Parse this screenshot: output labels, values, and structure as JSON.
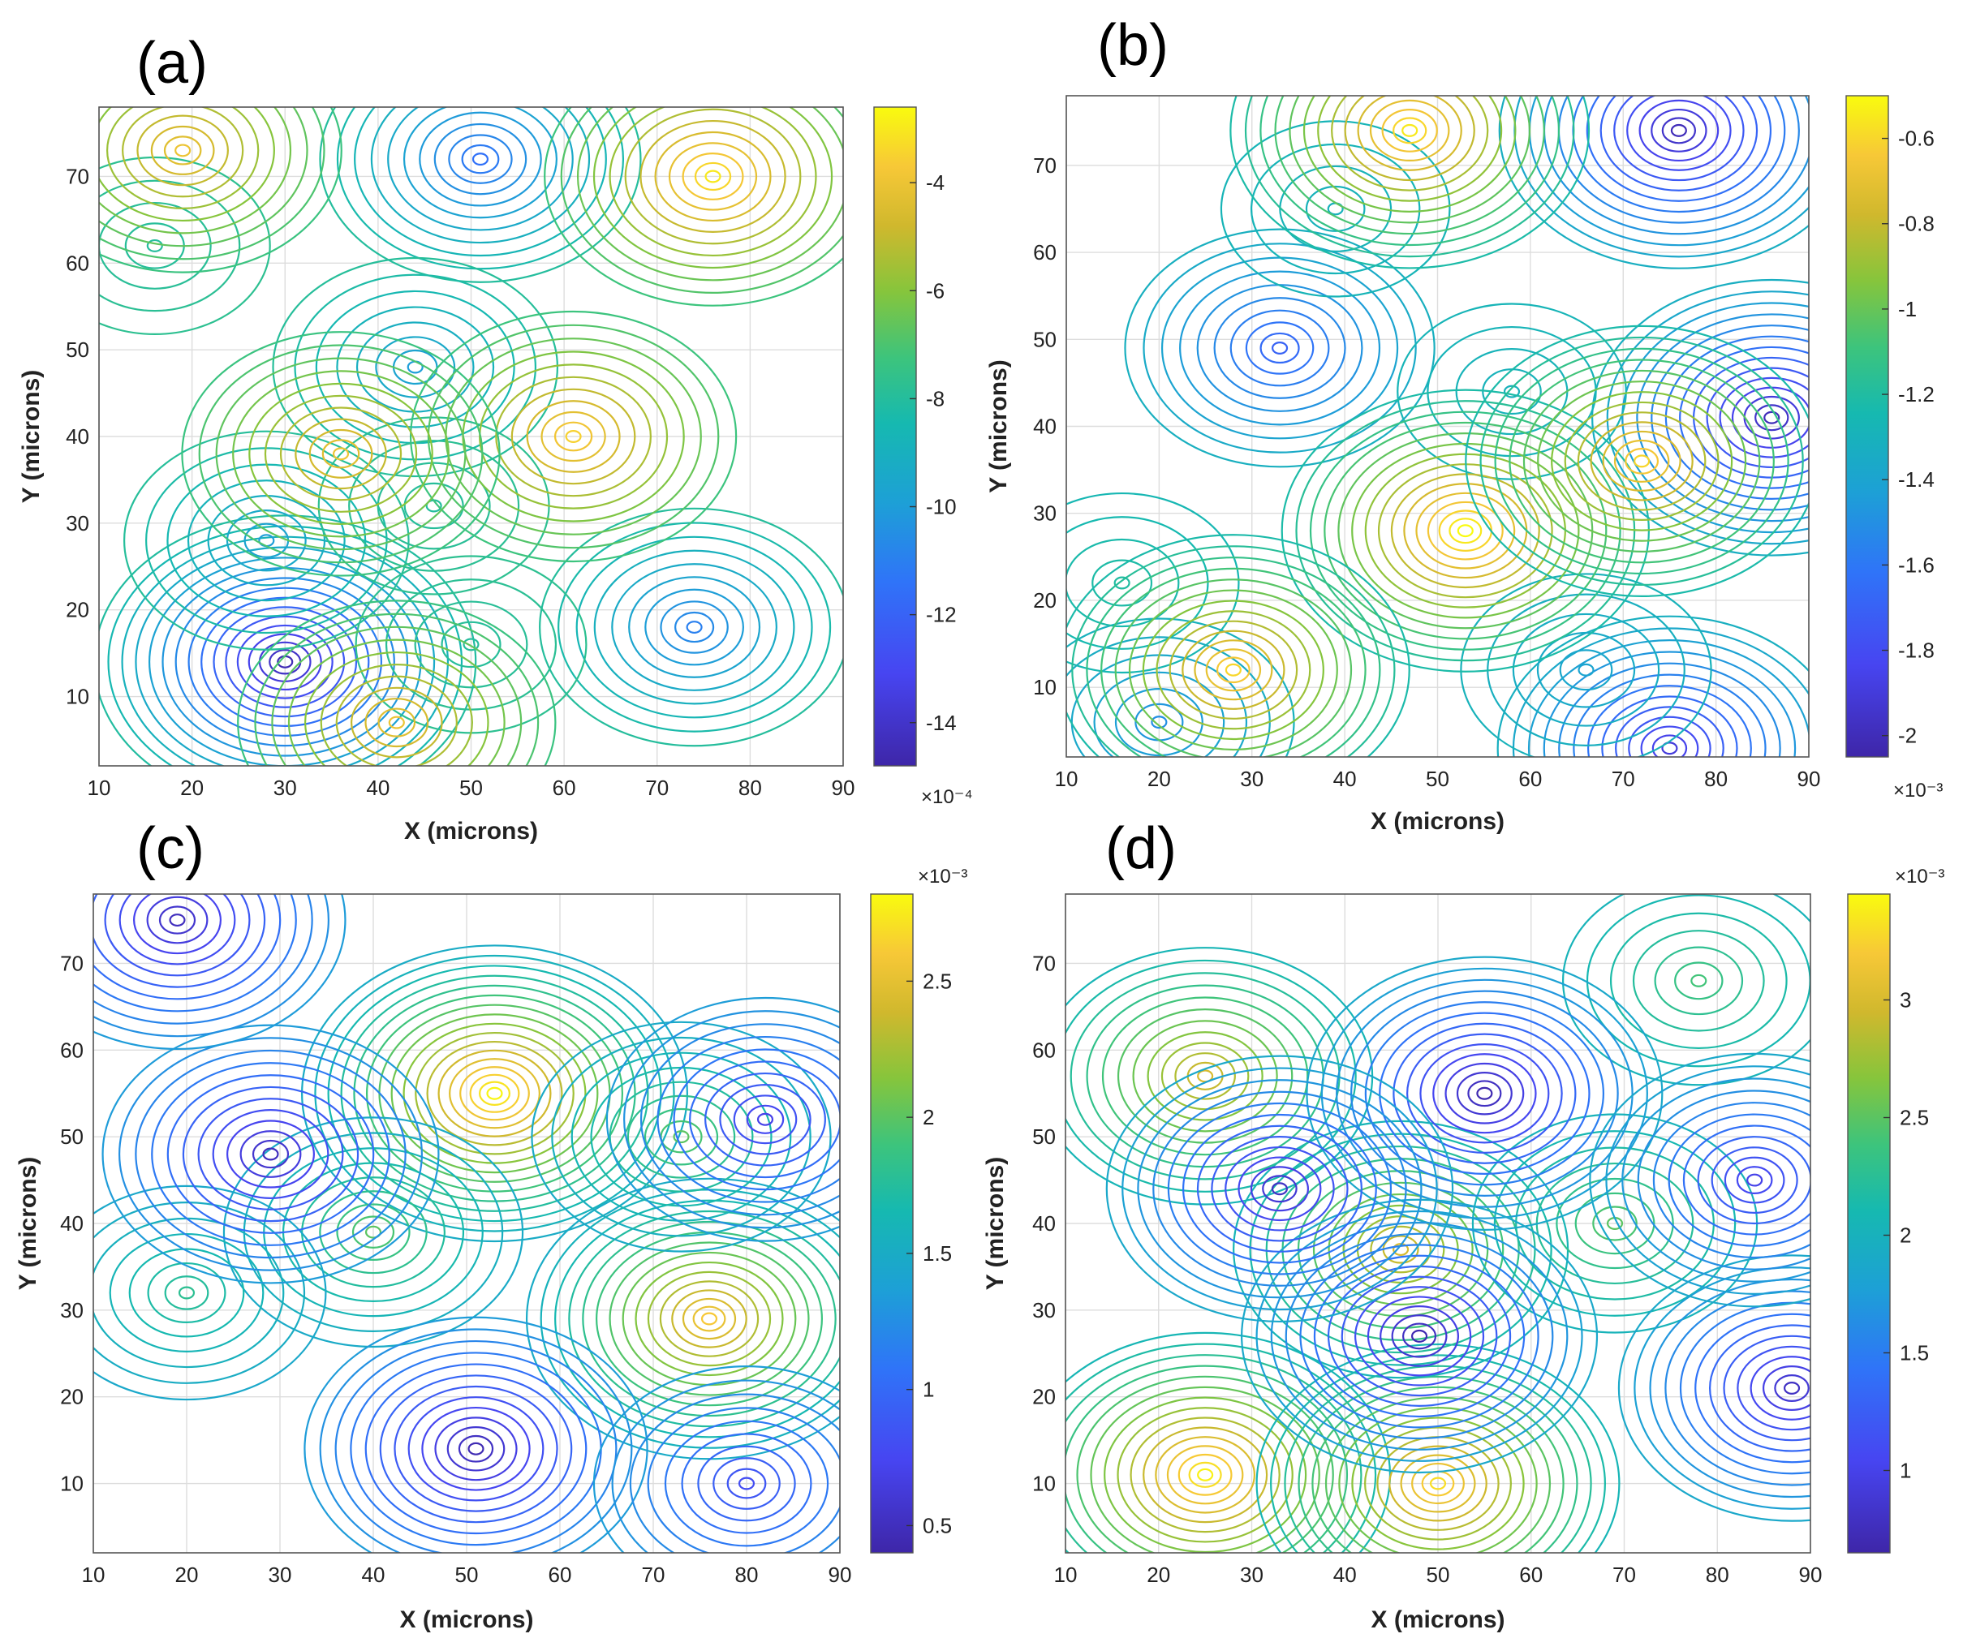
{
  "figure": {
    "panels": [
      "(a)",
      "(b)",
      "(c)",
      "(d)"
    ]
  },
  "chart_data": [
    {
      "type": "contour",
      "panel": "(a)",
      "title": "(a)",
      "xlabel": "X (microns)",
      "ylabel": "Y (microns)",
      "xlim": [
        10,
        90
      ],
      "ylim": [
        2,
        78
      ],
      "xticks": [
        10,
        20,
        30,
        40,
        50,
        60,
        70,
        80,
        90
      ],
      "yticks": [
        10,
        20,
        30,
        40,
        50,
        60,
        70
      ],
      "grid": true,
      "colorbar": {
        "range": [
          -14.8,
          -2.6
        ],
        "ticks": [
          -14,
          -12,
          -10,
          -8,
          -6,
          -4
        ],
        "tick_labels": [
          "-14",
          "-12",
          "-10",
          "-8",
          "-6",
          "-4"
        ],
        "multiplier": "×10⁻⁴",
        "multiplier_position": "bottom",
        "colormap": "parula"
      },
      "features": [
        {
          "x": 30,
          "y": 14,
          "value": -14.5,
          "kind": "minimum"
        },
        {
          "x": 51,
          "y": 72,
          "value": -11.5,
          "kind": "minimum"
        },
        {
          "x": 74,
          "y": 18,
          "value": -11.0,
          "kind": "minimum"
        },
        {
          "x": 44,
          "y": 48,
          "value": -10.0,
          "kind": "minimum"
        },
        {
          "x": 28,
          "y": 28,
          "value": -10.0,
          "kind": "minimum"
        },
        {
          "x": 50,
          "y": 16,
          "value": -8.0,
          "kind": "minimum"
        },
        {
          "x": 46,
          "y": 32,
          "value": -8.0,
          "kind": "minimum"
        },
        {
          "x": 16,
          "y": 62,
          "value": -8.0,
          "kind": "minimum"
        },
        {
          "x": 42,
          "y": 7,
          "value": -4.0,
          "kind": "maximum"
        },
        {
          "x": 76,
          "y": 70,
          "value": -3.0,
          "kind": "maximum"
        },
        {
          "x": 61,
          "y": 40,
          "value": -3.5,
          "kind": "maximum"
        },
        {
          "x": 36,
          "y": 38,
          "value": -4.0,
          "kind": "maximum"
        },
        {
          "x": 19,
          "y": 73,
          "value": -4.0,
          "kind": "maximum"
        }
      ]
    },
    {
      "type": "contour",
      "panel": "(b)",
      "title": "(b)",
      "xlabel": "X (microns)",
      "ylabel": "Y (microns)",
      "xlim": [
        10,
        90
      ],
      "ylim": [
        2,
        78
      ],
      "xticks": [
        10,
        20,
        30,
        40,
        50,
        60,
        70,
        80,
        90
      ],
      "yticks": [
        10,
        20,
        30,
        40,
        50,
        60,
        70
      ],
      "grid": true,
      "colorbar": {
        "range": [
          -2.05,
          -0.5
        ],
        "ticks": [
          -2,
          -1.8,
          -1.6,
          -1.4,
          -1.2,
          -1,
          -0.8,
          -0.6
        ],
        "tick_labels": [
          "-2",
          "-1.8",
          "-1.6",
          "-1.4",
          "-1.2",
          "-1",
          "-0.8",
          "-0.6"
        ],
        "multiplier": "×10⁻³",
        "multiplier_position": "bottom",
        "colormap": "parula"
      },
      "features": [
        {
          "x": 76,
          "y": 74,
          "value": -2.0,
          "kind": "minimum"
        },
        {
          "x": 86,
          "y": 41,
          "value": -2.0,
          "kind": "minimum"
        },
        {
          "x": 33,
          "y": 49,
          "value": -1.7,
          "kind": "minimum"
        },
        {
          "x": 75,
          "y": 3,
          "value": -1.9,
          "kind": "minimum"
        },
        {
          "x": 58,
          "y": 44,
          "value": -1.3,
          "kind": "minimum"
        },
        {
          "x": 20,
          "y": 6,
          "value": -1.5,
          "kind": "minimum"
        },
        {
          "x": 66,
          "y": 12,
          "value": -1.4,
          "kind": "minimum"
        },
        {
          "x": 39,
          "y": 65,
          "value": -1.3,
          "kind": "minimum"
        },
        {
          "x": 16,
          "y": 22,
          "value": -1.2,
          "kind": "minimum"
        },
        {
          "x": 47,
          "y": 74,
          "value": -0.55,
          "kind": "maximum"
        },
        {
          "x": 53,
          "y": 28,
          "value": -0.5,
          "kind": "maximum"
        },
        {
          "x": 28,
          "y": 12,
          "value": -0.6,
          "kind": "maximum"
        },
        {
          "x": 72,
          "y": 36,
          "value": -0.6,
          "kind": "maximum"
        }
      ]
    },
    {
      "type": "contour",
      "panel": "(c)",
      "title": "(c)",
      "xlabel": "X (microns)",
      "ylabel": "Y (microns)",
      "xlim": [
        10,
        90
      ],
      "ylim": [
        2,
        78
      ],
      "xticks": [
        10,
        20,
        30,
        40,
        50,
        60,
        70,
        80,
        90
      ],
      "yticks": [
        10,
        20,
        30,
        40,
        50,
        60,
        70
      ],
      "grid": true,
      "colorbar": {
        "range": [
          0.4,
          2.82
        ],
        "ticks": [
          0.5,
          1,
          1.5,
          2,
          2.5
        ],
        "tick_labels": [
          "0.5",
          "1",
          "1.5",
          "2",
          "2.5"
        ],
        "multiplier": "×10⁻³",
        "multiplier_position": "top",
        "colormap": "parula"
      },
      "features": [
        {
          "x": 53,
          "y": 55,
          "value": 2.8,
          "kind": "maximum"
        },
        {
          "x": 76,
          "y": 29,
          "value": 2.6,
          "kind": "maximum"
        },
        {
          "x": 40,
          "y": 39,
          "value": 2.0,
          "kind": "maximum"
        },
        {
          "x": 73,
          "y": 50,
          "value": 2.0,
          "kind": "maximum"
        },
        {
          "x": 20,
          "y": 32,
          "value": 1.8,
          "kind": "maximum"
        },
        {
          "x": 29,
          "y": 48,
          "value": 0.5,
          "kind": "minimum"
        },
        {
          "x": 51,
          "y": 14,
          "value": 0.45,
          "kind": "minimum"
        },
        {
          "x": 19,
          "y": 75,
          "value": 0.5,
          "kind": "minimum"
        },
        {
          "x": 82,
          "y": 52,
          "value": 0.7,
          "kind": "minimum"
        },
        {
          "x": 80,
          "y": 10,
          "value": 0.8,
          "kind": "minimum"
        }
      ]
    },
    {
      "type": "contour",
      "panel": "(d)",
      "title": "(d)",
      "xlabel": "X (microns)",
      "ylabel": "Y (microns)",
      "xlim": [
        10,
        90
      ],
      "ylim": [
        2,
        78
      ],
      "xticks": [
        10,
        20,
        30,
        40,
        50,
        60,
        70,
        80,
        90
      ],
      "yticks": [
        10,
        20,
        30,
        40,
        50,
        60,
        70
      ],
      "grid": true,
      "colorbar": {
        "range": [
          0.65,
          3.45
        ],
        "ticks": [
          1,
          1.5,
          2,
          2.5,
          3
        ],
        "tick_labels": [
          "1",
          "1.5",
          "2",
          "2.5",
          "3"
        ],
        "multiplier": "×10⁻³",
        "multiplier_position": "top",
        "colormap": "parula"
      },
      "features": [
        {
          "x": 25,
          "y": 11,
          "value": 3.4,
          "kind": "maximum"
        },
        {
          "x": 50,
          "y": 10,
          "value": 3.3,
          "kind": "maximum"
        },
        {
          "x": 46,
          "y": 37,
          "value": 3.0,
          "kind": "maximum"
        },
        {
          "x": 25,
          "y": 57,
          "value": 3.0,
          "kind": "maximum"
        },
        {
          "x": 69,
          "y": 40,
          "value": 2.5,
          "kind": "maximum"
        },
        {
          "x": 78,
          "y": 68,
          "value": 2.4,
          "kind": "maximum"
        },
        {
          "x": 55,
          "y": 55,
          "value": 0.7,
          "kind": "minimum"
        },
        {
          "x": 48,
          "y": 27,
          "value": 0.7,
          "kind": "minimum"
        },
        {
          "x": 88,
          "y": 21,
          "value": 0.8,
          "kind": "minimum"
        },
        {
          "x": 33,
          "y": 44,
          "value": 0.8,
          "kind": "minimum"
        },
        {
          "x": 84,
          "y": 45,
          "value": 1.0,
          "kind": "minimum"
        }
      ]
    }
  ]
}
